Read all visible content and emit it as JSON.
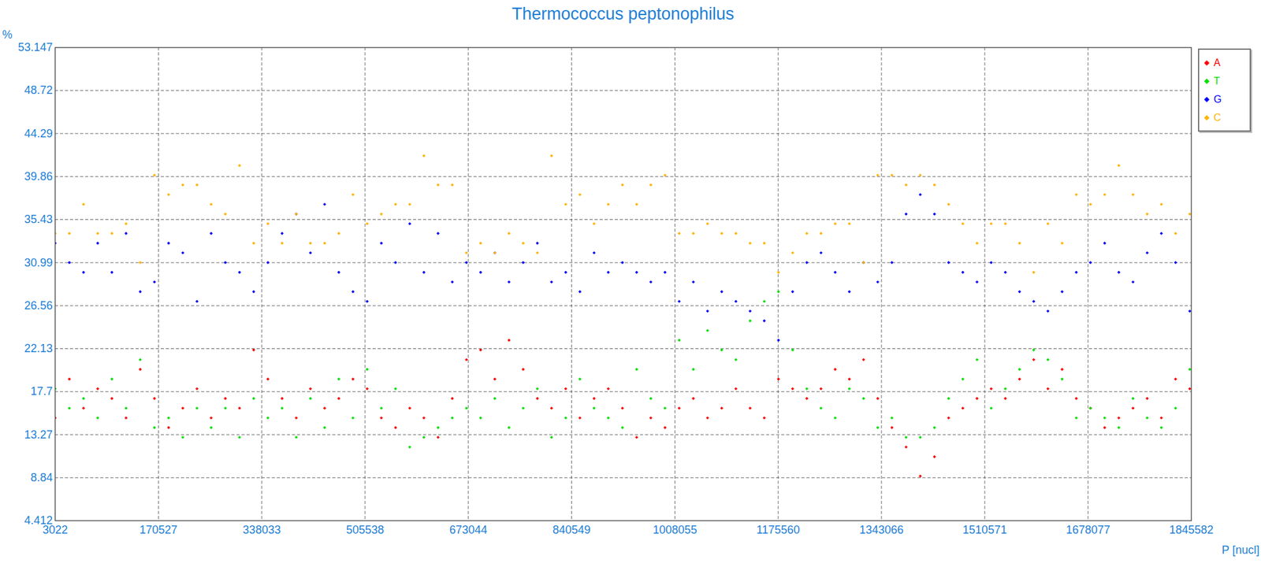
{
  "chart_data": {
    "type": "scatter",
    "title": "Thermococcus peptonophilus",
    "x_label": "P [nucl]",
    "y_label": "%",
    "xlim": [
      3022,
      1845582
    ],
    "xticks": [
      3022,
      170527,
      338033,
      505538,
      673044,
      840549,
      1008055,
      1175560,
      1343066,
      1510571,
      1678077,
      1845582
    ],
    "ylim": [
      4.412,
      53.147
    ],
    "yticks": [
      4.412,
      8.84,
      13.27,
      17.7,
      22.13,
      26.56,
      30.99,
      35.43,
      39.86,
      44.29,
      48.72,
      53.147
    ],
    "grid": true,
    "legend": "right",
    "x": [
      3022,
      26000,
      49000,
      72000,
      95000,
      118000,
      141000,
      164000,
      187000,
      210000,
      233000,
      256000,
      279000,
      302000,
      325000,
      348000,
      371000,
      394000,
      417000,
      440000,
      463000,
      486000,
      509000,
      532000,
      555000,
      578000,
      601000,
      624000,
      647000,
      670000,
      693000,
      716000,
      739000,
      762000,
      785000,
      808000,
      831000,
      854000,
      877000,
      900000,
      923000,
      946000,
      969000,
      992000,
      1015000,
      1038000,
      1061000,
      1084000,
      1107000,
      1130000,
      1153000,
      1176000,
      1199000,
      1222000,
      1245000,
      1268000,
      1291000,
      1314000,
      1337000,
      1360000,
      1383000,
      1406000,
      1429000,
      1452000,
      1475000,
      1498000,
      1521000,
      1544000,
      1567000,
      1590000,
      1613000,
      1636000,
      1659000,
      1682000,
      1705000,
      1728000,
      1751000,
      1774000,
      1797000,
      1820000,
      1843000
    ],
    "series": [
      {
        "name": "A",
        "color": "#ff0000",
        "marker": "diamond",
        "values": [
          15,
          19,
          16,
          18,
          17,
          15,
          20,
          17,
          14,
          16,
          18,
          15,
          17,
          16,
          22,
          19,
          17,
          15,
          18,
          16,
          17,
          19,
          18,
          15,
          14,
          16,
          15,
          13,
          17,
          21,
          22,
          19,
          23,
          20,
          17,
          16,
          18,
          15,
          17,
          18,
          16,
          13,
          15,
          14,
          16,
          17,
          15,
          16,
          18,
          16,
          15,
          19,
          18,
          17,
          18,
          20,
          19,
          21,
          17,
          14,
          12,
          9,
          11,
          15,
          16,
          17,
          18,
          17,
          19,
          21,
          18,
          20,
          17,
          16,
          14,
          15,
          16,
          17,
          15,
          19,
          18
        ]
      },
      {
        "name": "T",
        "color": "#00e000",
        "marker": "diamond",
        "values": [
          18,
          16,
          17,
          15,
          19,
          16,
          21,
          14,
          15,
          13,
          16,
          14,
          16,
          13,
          17,
          15,
          16,
          13,
          17,
          14,
          19,
          15,
          20,
          16,
          18,
          12,
          13,
          14,
          15,
          16,
          15,
          17,
          14,
          16,
          18,
          13,
          15,
          19,
          16,
          15,
          14,
          20,
          17,
          16,
          23,
          20,
          24,
          22,
          21,
          25,
          27,
          28,
          22,
          18,
          16,
          15,
          18,
          17,
          14,
          15,
          13,
          13,
          14,
          17,
          19,
          21,
          16,
          18,
          20,
          22,
          21,
          19,
          15,
          16,
          15,
          14,
          17,
          15,
          14,
          16,
          20
        ]
      },
      {
        "name": "G",
        "color": "#0000ff",
        "marker": "diamond",
        "values": [
          33,
          31,
          30,
          33,
          30,
          34,
          28,
          29,
          33,
          32,
          27,
          34,
          31,
          30,
          28,
          31,
          34,
          36,
          32,
          37,
          30,
          28,
          27,
          33,
          31,
          35,
          30,
          34,
          29,
          31,
          30,
          32,
          29,
          31,
          33,
          29,
          30,
          28,
          32,
          30,
          31,
          30,
          29,
          30,
          27,
          29,
          26,
          28,
          27,
          26,
          25,
          23,
          28,
          31,
          32,
          30,
          28,
          31,
          29,
          31,
          36,
          38,
          36,
          31,
          30,
          29,
          31,
          30,
          28,
          27,
          26,
          28,
          30,
          31,
          33,
          30,
          29,
          32,
          34,
          31,
          26
        ]
      },
      {
        "name": "C",
        "color": "#ffb400",
        "marker": "diamond",
        "values": [
          34,
          34,
          37,
          34,
          34,
          35,
          31,
          40,
          38,
          39,
          39,
          37,
          36,
          41,
          33,
          35,
          33,
          36,
          33,
          33,
          34,
          38,
          35,
          36,
          37,
          37,
          42,
          39,
          39,
          32,
          33,
          32,
          34,
          33,
          32,
          42,
          37,
          38,
          35,
          37,
          39,
          37,
          39,
          40,
          34,
          34,
          35,
          34,
          34,
          33,
          33,
          30,
          32,
          34,
          34,
          35,
          35,
          31,
          40,
          40,
          39,
          40,
          39,
          37,
          35,
          33,
          35,
          35,
          33,
          30,
          35,
          33,
          38,
          37,
          38,
          41,
          38,
          36,
          37,
          34,
          36
        ]
      }
    ]
  }
}
